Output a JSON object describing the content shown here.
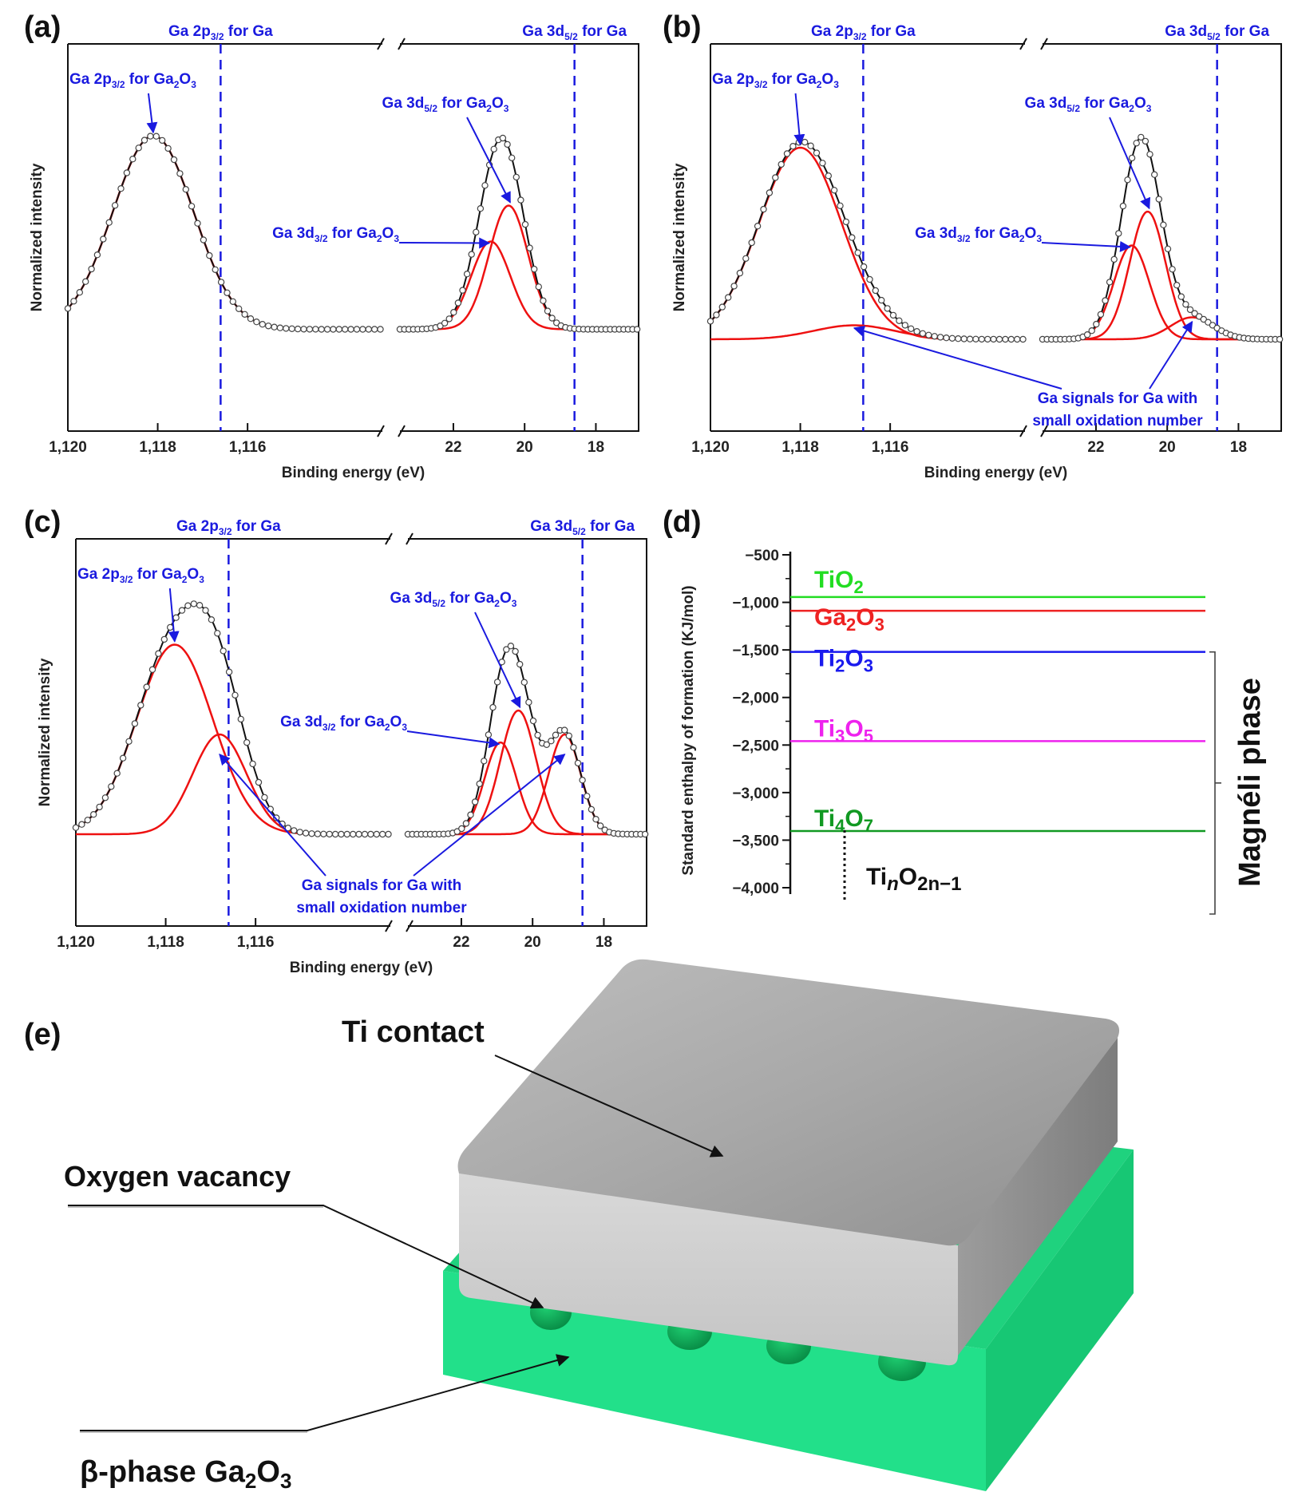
{
  "panels": {
    "a": {
      "label": "(a)"
    },
    "b": {
      "label": "(b)"
    },
    "c": {
      "label": "(c)"
    },
    "d": {
      "label": "(d)"
    },
    "e": {
      "label": "(e)"
    }
  },
  "xps_common": {
    "ylabel": "Normalized intensity",
    "xlabel": "Binding energy (eV)",
    "ticks_left": [
      "1,120",
      "1,118",
      "1,116"
    ],
    "ticks_right": [
      "22",
      "20",
      "18"
    ],
    "ref_2p": {
      "main": "Ga 2p",
      "sub": "3/2",
      "tail": " for Ga"
    },
    "ref_3d": {
      "main": "Ga 3d",
      "sub": "5/2",
      "tail": " for Ga"
    },
    "lab_2p_oxide": {
      "main": "Ga 2p",
      "sub": "3/2",
      "mid": " for Ga",
      "sub2": "2",
      "mid2": "O",
      "sub3": "3"
    },
    "lab_3d52_oxide": {
      "main": "Ga 3d",
      "sub": "5/2",
      "mid": " for Ga",
      "sub2": "2",
      "mid2": "O",
      "sub3": "3"
    },
    "lab_3d32_oxide": {
      "main": "Ga 3d",
      "sub": "3/2",
      "mid": " for Ga",
      "sub2": "2",
      "mid2": "O",
      "sub3": "3"
    },
    "small_ox_line1": "Ga signals for Ga with",
    "small_ox_line2": "small oxidation number"
  },
  "enthalpy": {
    "ylabel": "Standard enthalpy of formation (KJ/mol)",
    "side_label": "Magnéli phase",
    "series_label": "TinO2n−1",
    "species": [
      {
        "name": "TiO",
        "sub": "2",
        "name2": "",
        "sub2": "",
        "color": "#22dd22"
      },
      {
        "name": "Ga",
        "sub": "2",
        "name2": "O",
        "sub2": "3",
        "color": "#ee2222"
      },
      {
        "name": "Ti",
        "sub": "2",
        "name2": "O",
        "sub2": "3",
        "color": "#1a1aee"
      },
      {
        "name": "Ti",
        "sub": "3",
        "name2": "O",
        "sub2": "5",
        "color": "#ee22ee"
      },
      {
        "name": "Ti",
        "sub": "4",
        "name2": "O",
        "sub2": "7",
        "color": "#119922"
      }
    ]
  },
  "device": {
    "ti_contact": "Ti contact",
    "oxygen_vacancy": "Oxygen vacancy",
    "substrate_main": "β-phase Ga",
    "substrate_sub1": "2",
    "substrate_mid": "O",
    "substrate_sub2": "3"
  },
  "chart_data": [
    {
      "type": "line",
      "panel": "a",
      "title": "",
      "xlabel": "Binding energy (eV)",
      "ylabel": "Normalized intensity",
      "x_segments": [
        [
          1120,
          1113
        ],
        [
          23.5,
          16.8
        ]
      ],
      "reference_lines": [
        1116.6,
        18.6
      ],
      "components": [
        {
          "name": "Ga 2p3/2 Ga2O3",
          "center": 1118.1,
          "amplitude": 0.97,
          "sigma": 0.9
        },
        {
          "name": "Ga 3d5/2 Ga2O3",
          "center": 20.45,
          "amplitude": 0.62,
          "sigma": 0.55
        },
        {
          "name": "Ga 3d3/2 Ga2O3",
          "center": 20.95,
          "amplitude": 0.44,
          "sigma": 0.55
        }
      ],
      "baseline_2p": 0.05,
      "baseline_3d": 0.05
    },
    {
      "type": "line",
      "panel": "b",
      "title": "",
      "xlabel": "Binding energy (eV)",
      "ylabel": "Normalized intensity",
      "x_segments": [
        [
          1120,
          1113
        ],
        [
          23.5,
          16.8
        ]
      ],
      "reference_lines": [
        1116.6,
        18.6
      ],
      "components": [
        {
          "name": "Ga 2p3/2 Ga2O3",
          "center": 1118.0,
          "amplitude": 0.96,
          "sigma": 0.92
        },
        {
          "name": "Ga 2p3/2 Ga (small oxidation)",
          "center": 1116.8,
          "amplitude": 0.07,
          "sigma": 0.9
        },
        {
          "name": "Ga 3d5/2 Ga2O3",
          "center": 20.55,
          "amplitude": 0.64,
          "sigma": 0.5
        },
        {
          "name": "Ga 3d3/2 Ga2O3",
          "center": 21.0,
          "amplitude": 0.47,
          "sigma": 0.5
        },
        {
          "name": "Ga 3d Ga (small oxidation)",
          "center": 19.3,
          "amplitude": 0.11,
          "sigma": 0.6
        }
      ],
      "baseline_2p": 0.0,
      "baseline_3d": 0.0
    },
    {
      "type": "line",
      "panel": "c",
      "title": "",
      "xlabel": "Binding energy (eV)",
      "ylabel": "Normalized intensity",
      "x_segments": [
        [
          1120,
          1113
        ],
        [
          23.5,
          16.8
        ]
      ],
      "reference_lines": [
        1116.6,
        18.6
      ],
      "components": [
        {
          "name": "Ga 2p3/2 Ga2O3",
          "center": 1117.8,
          "amplitude": 0.95,
          "sigma": 0.85
        },
        {
          "name": "Ga 2p3/2 Ga (small oxidation)",
          "center": 1116.8,
          "amplitude": 0.5,
          "sigma": 0.6
        },
        {
          "name": "Ga 3d5/2 Ga2O3",
          "center": 20.4,
          "amplitude": 0.62,
          "sigma": 0.5
        },
        {
          "name": "Ga 3d3/2 Ga2O3",
          "center": 20.9,
          "amplitude": 0.46,
          "sigma": 0.45
        },
        {
          "name": "Ga 3d Ga (small oxidation)",
          "center": 19.1,
          "amplitude": 0.5,
          "sigma": 0.45
        }
      ],
      "baseline_2p": 0.0,
      "baseline_3d": 0.0
    },
    {
      "type": "bar",
      "panel": "d",
      "title": "",
      "xlabel": "",
      "ylabel": "Standard enthalpy of formation (KJ/mol)",
      "ylim": [
        -4200,
        -500
      ],
      "yticks": [
        "-500",
        "-1,000",
        "-1,500",
        "-2,000",
        "-2,500",
        "-3,000",
        "-3,500",
        "-4,000"
      ],
      "ytick_values": [
        -500,
        -1000,
        -1500,
        -2000,
        -2500,
        -3000,
        -3500,
        -4000
      ],
      "categories": [
        "TiO2",
        "Ga2O3",
        "Ti2O3",
        "Ti3O5",
        "Ti4O7"
      ],
      "values": [
        -944,
        -1089,
        -1521,
        -2459,
        -3404
      ]
    }
  ]
}
